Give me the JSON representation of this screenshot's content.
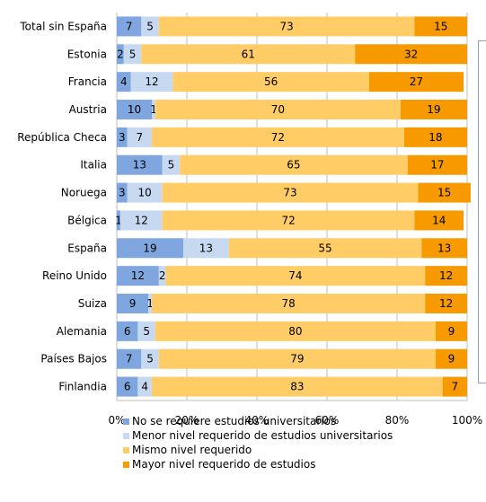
{
  "chart_data": {
    "type": "bar",
    "orientation": "horizontal",
    "stacked": true,
    "categories": [
      "Total sin España",
      "Estonia",
      "Francia",
      "Austria",
      "República Checa",
      "Italia",
      "Noruega",
      "Bélgica",
      "España",
      "Reino Unido",
      "Suiza",
      "Alemania",
      "Países Bajos",
      "Finlandia"
    ],
    "series": [
      {
        "name": "No se requiere estudios universitarios",
        "color": "#7fa6df",
        "values": [
          7,
          2,
          4,
          10,
          3,
          13,
          3,
          1,
          19,
          12,
          9,
          6,
          7,
          6
        ]
      },
      {
        "name": "Menor nivel requerido de estudios universitarios",
        "color": "#c6d9f1",
        "values": [
          5,
          5,
          12,
          1,
          7,
          5,
          10,
          12,
          13,
          2,
          1,
          5,
          5,
          4
        ]
      },
      {
        "name": "Mismo nivel requerido",
        "color": "#ffcc66",
        "values": [
          73,
          61,
          56,
          70,
          72,
          65,
          73,
          72,
          55,
          74,
          78,
          80,
          79,
          83
        ]
      },
      {
        "name": "Mayor nivel requerido de estudios",
        "color": "#f79a00",
        "values": [
          15,
          32,
          27,
          19,
          18,
          17,
          15,
          14,
          13,
          12,
          12,
          9,
          9,
          7
        ]
      }
    ],
    "x_ticks": [
      "0%",
      "20%",
      "40%",
      "60%",
      "80%",
      "100%"
    ],
    "xlim": [
      0,
      100
    ],
    "grid": true,
    "legend_position": "bottom"
  }
}
